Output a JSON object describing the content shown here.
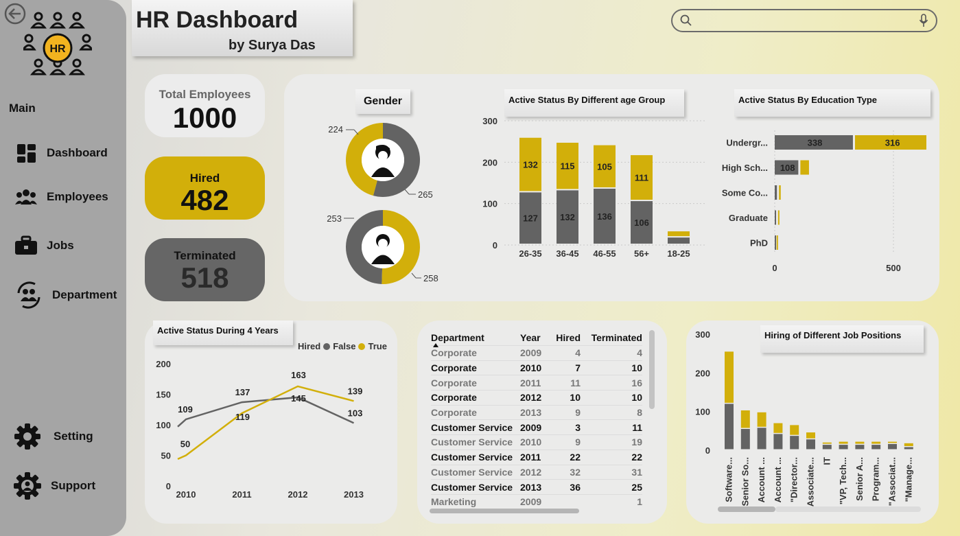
{
  "sidebar": {
    "section_label": "Main",
    "logo_text": "HR",
    "items": [
      {
        "label": "Dashboard",
        "icon": "dashboard-icon"
      },
      {
        "label": "Employees",
        "icon": "employees-icon"
      },
      {
        "label": "Jobs",
        "icon": "briefcase-icon"
      },
      {
        "label": "Department",
        "icon": "department-icon"
      }
    ],
    "bottom_items": [
      {
        "label": "Setting",
        "icon": "gear-icon"
      },
      {
        "label": "Support",
        "icon": "support-icon"
      }
    ]
  },
  "header": {
    "title": "HR Dashboard",
    "subtitle": "by Surya Das"
  },
  "search": {
    "placeholder": ""
  },
  "kpis": {
    "total": {
      "label": "Total Employees",
      "value": "1000"
    },
    "hired": {
      "label": "Hired",
      "value": "482"
    },
    "terminated": {
      "label": "Terminated",
      "value": "518"
    }
  },
  "colors": {
    "yellow": "#d2af0a",
    "gray": "#636363",
    "dark_kpi": "#666666"
  },
  "chart_data": [
    {
      "id": "gender",
      "type": "pie",
      "title": "Gender",
      "donuts": [
        {
          "icon": "female-icon",
          "yellow": 224,
          "gray": 265
        },
        {
          "icon": "male-icon",
          "gray": 253,
          "yellow": 258
        }
      ]
    },
    {
      "id": "age",
      "type": "bar",
      "title": "Active Status By Different age Group",
      "categories": [
        "26-35",
        "36-45",
        "46-55",
        "56+",
        "18-25"
      ],
      "series": [
        {
          "color": "gray",
          "values": [
            127,
            132,
            136,
            106,
            18
          ],
          "labels": [
            "127",
            "132",
            "136",
            "106",
            ""
          ]
        },
        {
          "color": "yellow",
          "values": [
            132,
            115,
            105,
            111,
            15
          ],
          "labels": [
            "132",
            "115",
            "105",
            "111",
            ""
          ]
        }
      ],
      "ylim": [
        0,
        300
      ],
      "yticks": [
        "300",
        "200",
        "100",
        "0"
      ]
    },
    {
      "id": "education",
      "type": "bar",
      "title": "Active Status By Education Type",
      "categories": [
        "Undergr...",
        "High Sch...",
        "Some Co...",
        "Graduate",
        "PhD"
      ],
      "series": [
        {
          "color": "gray",
          "values": [
            338,
            108,
            18,
            14,
            8
          ],
          "labels": [
            "338",
            "108",
            "",
            "",
            ""
          ]
        },
        {
          "color": "yellow",
          "values": [
            316,
            45,
            16,
            14,
            6
          ],
          "labels": [
            "316",
            "",
            "",
            "",
            ""
          ]
        }
      ],
      "xticks": [
        "0",
        "500"
      ],
      "xlim": [
        0,
        660
      ]
    },
    {
      "id": "years",
      "type": "line",
      "title": "Active Status During 4 Years",
      "legend": {
        "title": "Hired",
        "items": [
          {
            "name": "False",
            "color": "gray"
          },
          {
            "name": "True",
            "color": "yellow"
          }
        ]
      },
      "x": [
        "2010",
        "2011",
        "2012",
        "2013"
      ],
      "series": [
        {
          "name": "False",
          "color": "gray",
          "values": [
            109,
            137,
            145,
            103
          ],
          "start": 97
        },
        {
          "name": "True",
          "color": "yellow",
          "values": [
            50,
            119,
            163,
            139
          ],
          "start": 44
        }
      ],
      "ylim": [
        0,
        200
      ],
      "yticks": [
        "200",
        "150",
        "100",
        "50",
        "0"
      ]
    },
    {
      "id": "jobs",
      "type": "bar",
      "title": "Hiring of Different Job Positions",
      "categories": [
        "Software...",
        "Senior So...",
        "Account ...",
        "Account ...",
        "\"Director...",
        "Associate...",
        "IT",
        "\"VP, Tech...",
        "Senior A...",
        "Program...",
        "\"Associat...",
        "\"Manage..."
      ],
      "series": [
        {
          "color": "gray",
          "values": [
            120,
            55,
            58,
            42,
            37,
            28,
            14,
            14,
            14,
            14,
            16,
            8
          ]
        },
        {
          "color": "yellow",
          "values": [
            135,
            48,
            40,
            28,
            28,
            18,
            6,
            8,
            8,
            8,
            6,
            10
          ]
        }
      ],
      "ylim": [
        0,
        300
      ],
      "yticks": [
        "300",
        "200",
        "100",
        "0"
      ]
    }
  ],
  "table": {
    "columns": [
      "Department",
      "Year",
      "Hired",
      "Terminated"
    ],
    "rows": [
      [
        "Corporate",
        "2009",
        "4",
        "4"
      ],
      [
        "Corporate",
        "2010",
        "7",
        "10"
      ],
      [
        "Corporate",
        "2011",
        "11",
        "16"
      ],
      [
        "Corporate",
        "2012",
        "10",
        "10"
      ],
      [
        "Corporate",
        "2013",
        "9",
        "8"
      ],
      [
        "Customer Service",
        "2009",
        "3",
        "11"
      ],
      [
        "Customer Service",
        "2010",
        "9",
        "19"
      ],
      [
        "Customer Service",
        "2011",
        "22",
        "22"
      ],
      [
        "Customer Service",
        "2012",
        "32",
        "31"
      ],
      [
        "Customer Service",
        "2013",
        "36",
        "25"
      ],
      [
        "Marketing",
        "2009",
        "",
        "1"
      ]
    ]
  }
}
